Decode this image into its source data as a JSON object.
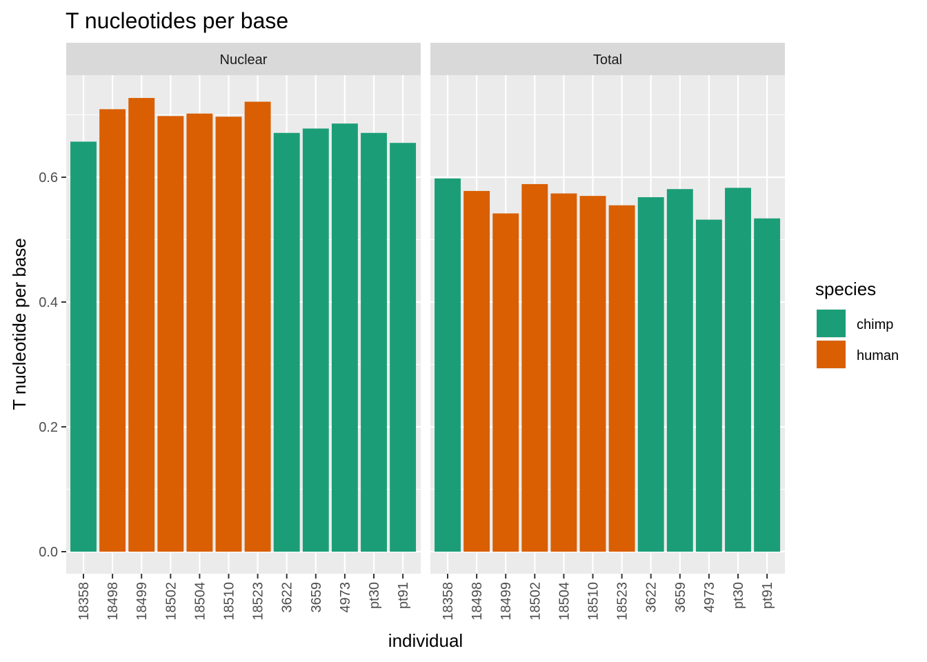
{
  "chart_data": {
    "type": "bar",
    "title": "T nucleotides per base",
    "xlabel": "individual",
    "ylabel": "T nucleotide per base",
    "ylim": [
      0,
      0.75
    ],
    "yticks": [
      0.0,
      0.2,
      0.4,
      0.6
    ],
    "ytick_labels": [
      "0.0",
      "0.2",
      "0.4",
      "0.6"
    ],
    "grid": true,
    "legend": {
      "title": "species",
      "position": "right",
      "entries": [
        {
          "name": "chimp",
          "color": "#1B9E77"
        },
        {
          "name": "human",
          "color": "#D95F02"
        }
      ]
    },
    "categories": [
      "18358",
      "18498",
      "18499",
      "18502",
      "18504",
      "18510",
      "18523",
      "3622",
      "3659",
      "4973",
      "pt30",
      "pt91"
    ],
    "species": [
      "chimp",
      "human",
      "human",
      "human",
      "human",
      "human",
      "human",
      "chimp",
      "chimp",
      "chimp",
      "chimp",
      "chimp"
    ],
    "facets": [
      {
        "name": "Nuclear",
        "values": [
          0.657,
          0.709,
          0.727,
          0.698,
          0.702,
          0.697,
          0.721,
          0.671,
          0.678,
          0.686,
          0.671,
          0.655
        ]
      },
      {
        "name": "Total",
        "values": [
          0.598,
          0.578,
          0.542,
          0.589,
          0.574,
          0.57,
          0.555,
          0.568,
          0.581,
          0.532,
          0.583,
          0.534
        ]
      }
    ]
  }
}
